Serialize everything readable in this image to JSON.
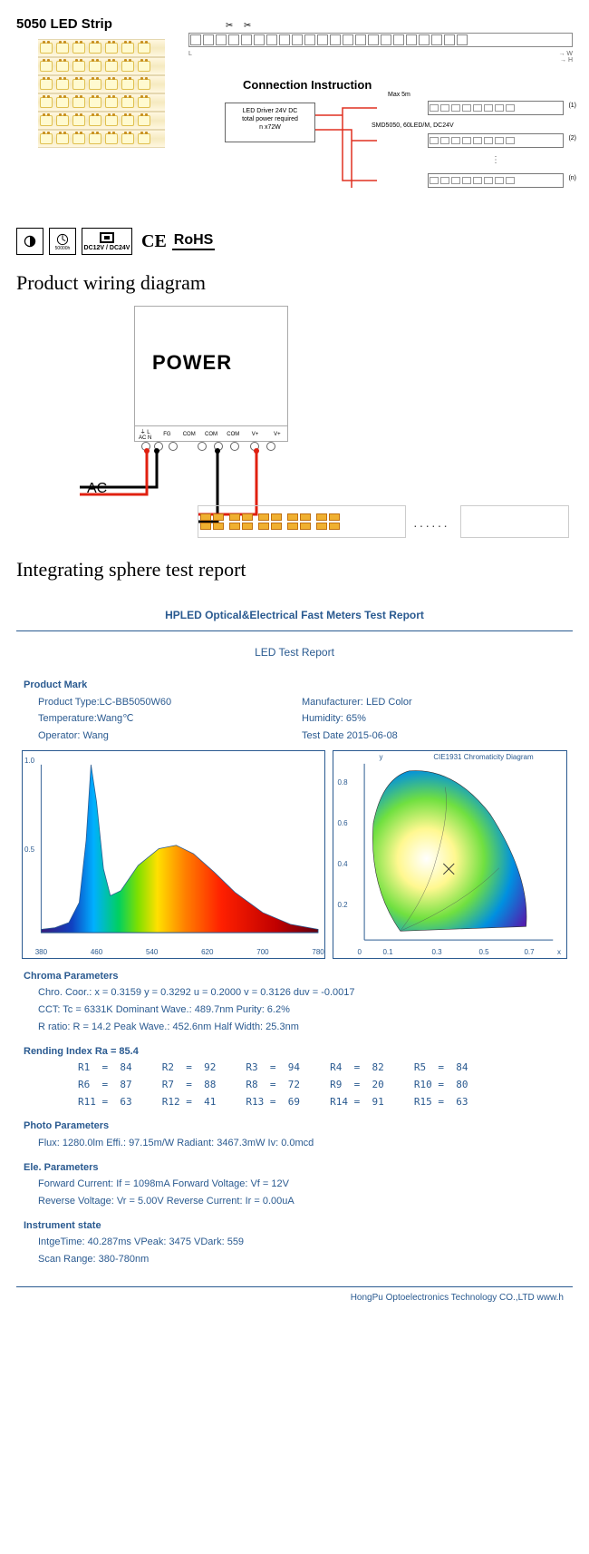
{
  "title": "5050 LED Strip",
  "icons": {
    "hours": "50000h",
    "dc": "DC12V / DC24V",
    "ce": "CE",
    "rohs": "RoHS"
  },
  "connection": {
    "title": "Connection Instruction",
    "driver": "LED Driver 24V DC\ntotal power required\nn x72W",
    "max": "Max 5m",
    "spec": "SMD5050, 60LED/M, DC24V",
    "labels": [
      "(1)",
      "(2)",
      "(n)"
    ]
  },
  "wiring_title": "Product wiring diagram",
  "wiring": {
    "power": "POWER",
    "ac": "AC"
  },
  "report_title": "Integrating sphere test report",
  "report_header": "HPLED Optical&Electrical Fast Meters Test Report",
  "report_sub": "LED Test Report",
  "product_mark": {
    "heading": "Product Mark",
    "type_label": "Product Type:",
    "type": "LC-BB5050W60",
    "temp_label": "Temperature:",
    "temp": "Wang℃",
    "operator_label": "Operator:",
    "operator": "Wang",
    "mfr_label": "Manufacturer:",
    "mfr": "LED Color",
    "humidity_label": "Humidity:",
    "humidity": "65%",
    "date_label": "Test Date",
    "date": "2015-06-08"
  },
  "spectrum": {
    "ylabels": [
      "1.0",
      "0.5"
    ],
    "xlabels": [
      "380",
      "460",
      "540",
      "620",
      "700",
      "780"
    ],
    "xlim": [
      380,
      780
    ],
    "ylim": [
      0,
      1
    ],
    "curve": [
      [
        380,
        0.02
      ],
      [
        400,
        0.03
      ],
      [
        420,
        0.06
      ],
      [
        435,
        0.18
      ],
      [
        445,
        0.55
      ],
      [
        452,
        1.0
      ],
      [
        460,
        0.78
      ],
      [
        470,
        0.38
      ],
      [
        480,
        0.22
      ],
      [
        495,
        0.25
      ],
      [
        520,
        0.4
      ],
      [
        550,
        0.5
      ],
      [
        575,
        0.52
      ],
      [
        600,
        0.47
      ],
      [
        630,
        0.36
      ],
      [
        660,
        0.24
      ],
      [
        700,
        0.12
      ],
      [
        740,
        0.05
      ],
      [
        780,
        0.02
      ]
    ],
    "gradient": [
      [
        "#3a1a7a",
        0
      ],
      [
        "#1040c0",
        0.11
      ],
      [
        "#00b0ff",
        0.19
      ],
      [
        "#00d060",
        0.28
      ],
      [
        "#80e000",
        0.35
      ],
      [
        "#ffe000",
        0.42
      ],
      [
        "#ff8000",
        0.52
      ],
      [
        "#ff2000",
        0.65
      ],
      [
        "#c00000",
        0.85
      ],
      [
        "#600010",
        1
      ]
    ]
  },
  "cie": {
    "title": "CIE1931 Chromaticity Diagram",
    "yaxis": "y",
    "xlabels": [
      "0",
      "0.1",
      "0.3",
      "0.5",
      "0.7"
    ],
    "ylabels": [
      "0.8",
      "0.6",
      "0.4",
      "0.2"
    ],
    "xlim": [
      0,
      0.8
    ],
    "ylim": [
      0,
      0.9
    ]
  },
  "chroma": {
    "heading": "Chroma Parameters",
    "l1": "Chro. Coor.:  x = 0.3159    y = 0.3292    u = 0.2000    v = 0.3126    duv = -0.0017",
    "l2": "CCT: Tc = 6331K      Dominant Wave.:   489.7nm         Purity: 6.2%",
    "l3": "R ratio:  R  =   14.2            Peak Wave.:    452.6nm         Half Width: 25.3nm"
  },
  "rending": {
    "heading": "Rending Index        Ra   =   85.4",
    "r": {
      "R1": 84,
      "R2": 92,
      "R3": 94,
      "R4": 82,
      "R5": 84,
      "R6": 87,
      "R7": 88,
      "R8": 72,
      "R9": 20,
      "R10": 80,
      "R11": 63,
      "R12": 41,
      "R13": 69,
      "R14": 91,
      "R15": 63
    }
  },
  "photo": {
    "heading": "Photo Parameters",
    "line": "Flux: 1280.0lm       Effi.: 97.15m/W      Radiant: 3467.3mW      Iv: 0.0mcd"
  },
  "ele": {
    "heading": "Ele. Parameters",
    "l1": "Forward Current:  If  =  1098mA            Forward Voltage:  Vf  =  12V",
    "l2": "Reverse Voltage:  Vr  =  5.00V             Reverse Current:  Ir  =  0.00uA"
  },
  "instr": {
    "heading": "Instrument state",
    "l1": "IntgeTime: 40.287ms                    VPeak: 3475             VDark: 559",
    "l2": "Scan Range: 380-780nm"
  },
  "footer": "HongPu Optoelectronics Technology CO.,LTD www.h"
}
